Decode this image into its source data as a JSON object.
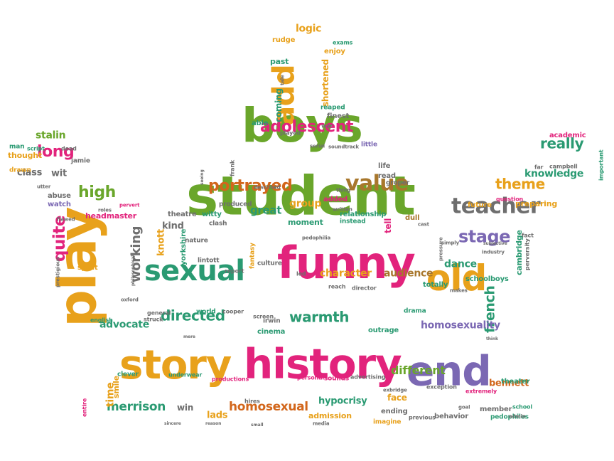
{
  "palette": {
    "green": "#6aa62b",
    "magenta": "#e2237c",
    "orange": "#e8a11b",
    "teal": "#2a9a72",
    "purple": "#7b68b3",
    "gray": "#6e6e6e",
    "brown": "#a8772c",
    "darkorange": "#d2661b"
  },
  "words": [
    {
      "t": "student",
      "c": "green"
    },
    {
      "t": "boys",
      "c": "green"
    },
    {
      "t": "funny",
      "c": "magenta"
    },
    {
      "t": "play",
      "c": "orange"
    },
    {
      "t": "history",
      "c": "magenta"
    },
    {
      "t": "story",
      "c": "orange"
    },
    {
      "t": "end",
      "c": "purple"
    },
    {
      "t": "old",
      "c": "orange"
    },
    {
      "t": "sexual",
      "c": "teal"
    },
    {
      "t": "add",
      "c": "orange"
    },
    {
      "t": "teacher",
      "c": "gray"
    },
    {
      "t": "value",
      "c": "brown"
    },
    {
      "t": "adolescent",
      "c": "magenta"
    },
    {
      "t": "portrayed",
      "c": "darkorange"
    },
    {
      "t": "directed",
      "c": "teal"
    },
    {
      "t": "warmth",
      "c": "teal"
    },
    {
      "t": "stage",
      "c": "purple"
    },
    {
      "t": "long",
      "c": "magenta"
    },
    {
      "t": "high",
      "c": "green"
    },
    {
      "t": "quite",
      "c": "magenta"
    },
    {
      "t": "working",
      "c": "gray"
    },
    {
      "t": "really",
      "c": "teal"
    },
    {
      "t": "theme",
      "c": "orange"
    },
    {
      "t": "french",
      "c": "teal"
    },
    {
      "t": "knowledge",
      "c": "teal"
    },
    {
      "t": "homosexual",
      "c": "darkorange"
    },
    {
      "t": "merrison",
      "c": "teal"
    },
    {
      "t": "different",
      "c": "green"
    },
    {
      "t": "bennett",
      "c": "darkorange"
    },
    {
      "t": "homosexuality",
      "c": "purple"
    },
    {
      "t": "advocate",
      "c": "teal"
    },
    {
      "t": "stalin",
      "c": "green"
    },
    {
      "t": "character",
      "c": "orange"
    },
    {
      "t": "audience",
      "c": "brown"
    },
    {
      "t": "great",
      "c": "teal"
    },
    {
      "t": "group",
      "c": "orange"
    },
    {
      "t": "dance",
      "c": "teal"
    },
    {
      "t": "logic",
      "c": "orange"
    },
    {
      "t": "class",
      "c": "gray"
    },
    {
      "t": "wit",
      "c": "gray"
    },
    {
      "t": "kind",
      "c": "gray"
    },
    {
      "t": "knott",
      "c": "orange"
    },
    {
      "t": "tell",
      "c": "magenta"
    },
    {
      "t": "preparing",
      "c": "orange"
    },
    {
      "t": "future",
      "c": "orange"
    },
    {
      "t": "time",
      "c": "orange"
    },
    {
      "t": "face",
      "c": "orange"
    },
    {
      "t": "hypocrisy",
      "c": "teal"
    },
    {
      "t": "admission",
      "c": "orange"
    },
    {
      "t": "lads",
      "c": "orange"
    },
    {
      "t": "win",
      "c": "gray"
    },
    {
      "t": "behavior",
      "c": "gray"
    },
    {
      "t": "ending",
      "c": "gray"
    },
    {
      "t": "member",
      "c": "gray"
    },
    {
      "t": "academic",
      "c": "magenta"
    },
    {
      "t": "thought",
      "c": "orange"
    },
    {
      "t": "headmaster",
      "c": "magenta"
    },
    {
      "t": "spirit",
      "c": "orange"
    },
    {
      "t": "shortened",
      "c": "orange"
    },
    {
      "t": "coming",
      "c": "teal"
    },
    {
      "t": "past",
      "c": "teal"
    },
    {
      "t": "rudge",
      "c": "orange"
    },
    {
      "t": "enjoy",
      "c": "orange"
    },
    {
      "t": "finest",
      "c": "gray"
    },
    {
      "t": "able",
      "c": "teal"
    },
    {
      "t": "moment",
      "c": "teal"
    },
    {
      "t": "witty",
      "c": "teal"
    },
    {
      "t": "theatre",
      "c": "gray"
    },
    {
      "t": "yorkshire",
      "c": "teal"
    },
    {
      "t": "nature",
      "c": "gray"
    },
    {
      "t": "cambridge",
      "c": "teal"
    },
    {
      "t": "schoolboys",
      "c": "teal"
    },
    {
      "t": "totally",
      "c": "teal"
    },
    {
      "t": "cinema",
      "c": "teal"
    },
    {
      "t": "world",
      "c": "teal"
    },
    {
      "t": "irwin",
      "c": "gray"
    },
    {
      "t": "outrage",
      "c": "teal"
    },
    {
      "t": "drama",
      "c": "teal"
    },
    {
      "t": "smile",
      "c": "orange"
    },
    {
      "t": "clever",
      "c": "teal"
    },
    {
      "t": "underwear",
      "c": "teal"
    },
    {
      "t": "theater",
      "c": "teal"
    },
    {
      "t": "pedophiles",
      "c": "teal"
    },
    {
      "t": "exception",
      "c": "gray"
    },
    {
      "t": "culture",
      "c": "gray"
    },
    {
      "t": "fantasy",
      "c": "orange"
    },
    {
      "t": "dull",
      "c": "brown"
    },
    {
      "t": "read",
      "c": "gray"
    },
    {
      "t": "life",
      "c": "gray"
    },
    {
      "t": "groper",
      "c": "gray"
    },
    {
      "t": "instead",
      "c": "teal"
    },
    {
      "t": "relationship",
      "c": "teal"
    },
    {
      "t": "lintott",
      "c": "gray"
    },
    {
      "t": "report",
      "c": "gray"
    },
    {
      "t": "clash",
      "c": "gray"
    },
    {
      "t": "produced",
      "c": "gray"
    },
    {
      "t": "added",
      "c": "magenta"
    },
    {
      "t": "jamie",
      "c": "gray"
    },
    {
      "t": "abuse",
      "c": "gray"
    },
    {
      "t": "watch",
      "c": "purple"
    },
    {
      "t": "sounds",
      "c": "magenta"
    },
    {
      "t": "advertising",
      "c": "gray"
    },
    {
      "t": "personal",
      "c": "magenta"
    },
    {
      "t": "productions",
      "c": "magenta"
    },
    {
      "t": "hires",
      "c": "gray"
    },
    {
      "t": "imagine",
      "c": "orange"
    },
    {
      "t": "previous",
      "c": "gray"
    },
    {
      "t": "cooper",
      "c": "gray"
    },
    {
      "t": "screen",
      "c": "gray"
    },
    {
      "t": "general",
      "c": "gray"
    },
    {
      "t": "struck",
      "c": "gray"
    },
    {
      "t": "english",
      "c": "teal"
    },
    {
      "t": "oxford",
      "c": "gray"
    },
    {
      "t": "reach",
      "c": "gray"
    },
    {
      "t": "director",
      "c": "gray"
    },
    {
      "t": "led",
      "c": "gray"
    },
    {
      "t": "far",
      "c": "gray"
    },
    {
      "t": "campbell",
      "c": "gray"
    },
    {
      "t": "fact",
      "c": "gray"
    },
    {
      "t": "simply",
      "c": "gray"
    },
    {
      "t": "pressure",
      "c": "gray"
    },
    {
      "t": "question",
      "c": "magenta"
    },
    {
      "t": "industry",
      "c": "gray"
    },
    {
      "t": "subjective",
      "c": "gray"
    },
    {
      "t": "perversity",
      "c": "gray"
    },
    {
      "t": "makes",
      "c": "gray"
    },
    {
      "t": "important",
      "c": "teal"
    },
    {
      "t": "drawn",
      "c": "orange"
    },
    {
      "t": "man",
      "c": "teal"
    },
    {
      "t": "script",
      "c": "teal"
    },
    {
      "t": "dead",
      "c": "gray"
    },
    {
      "t": "exams",
      "c": "teal"
    },
    {
      "t": "reaped",
      "c": "teal"
    },
    {
      "t": "war",
      "c": "gray"
    },
    {
      "t": "played",
      "c": "gray"
    },
    {
      "t": "serial",
      "c": "gray"
    },
    {
      "t": "soundtrack",
      "c": "gray"
    },
    {
      "t": "little",
      "c": "purple"
    },
    {
      "t": "frank",
      "c": "gray"
    },
    {
      "t": "seeing",
      "c": "gray"
    },
    {
      "t": "described",
      "c": "gray"
    },
    {
      "t": "thing",
      "c": "gray"
    },
    {
      "t": "written",
      "c": "gray"
    },
    {
      "t": "pedophilia",
      "c": "gray"
    },
    {
      "t": "flawed",
      "c": "gray"
    },
    {
      "t": "roles",
      "c": "gray"
    },
    {
      "t": "pervert",
      "c": "magenta"
    },
    {
      "t": "mere",
      "c": "gray"
    },
    {
      "t": "exbridge",
      "c": "gray"
    },
    {
      "t": "small",
      "c": "gray"
    },
    {
      "t": "media",
      "c": "gray"
    },
    {
      "t": "reason",
      "c": "gray"
    },
    {
      "t": "sincere",
      "c": "gray"
    },
    {
      "t": "entire",
      "c": "magenta"
    },
    {
      "t": "extremely",
      "c": "magenta"
    },
    {
      "t": "school",
      "c": "teal"
    },
    {
      "t": "goal",
      "c": "gray"
    },
    {
      "t": "admin",
      "c": "gray"
    },
    {
      "t": "tale",
      "c": "gray"
    },
    {
      "t": "cast",
      "c": "gray"
    },
    {
      "t": "utter",
      "c": "gray"
    },
    {
      "t": "prestigious",
      "c": "gray"
    },
    {
      "t": "philosophical",
      "c": "gray"
    },
    {
      "t": "think",
      "c": "gray"
    }
  ]
}
